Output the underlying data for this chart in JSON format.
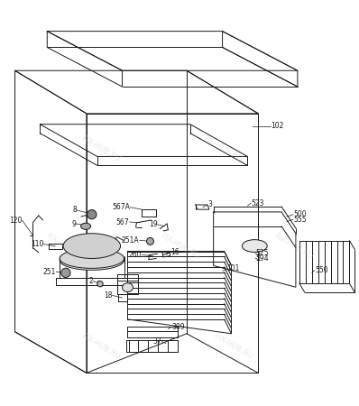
{
  "bg_color": "#ffffff",
  "line_color": "#1a1a1a",
  "watermark_color": "#cccccc",
  "watermark_text": "FIX-HUB.RU",
  "figsize": [
    3.98,
    4.5
  ],
  "dpi": 100
}
